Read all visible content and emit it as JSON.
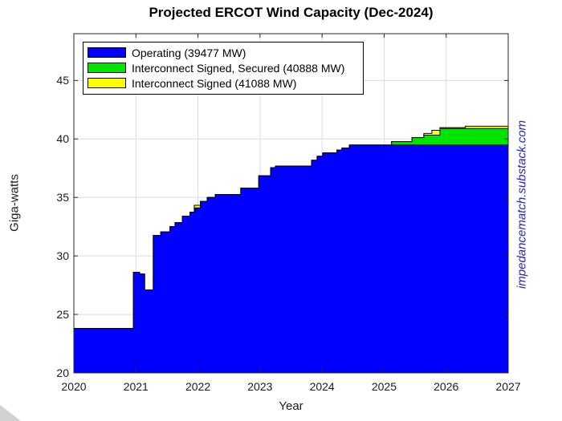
{
  "watermark": "impedancematch.substack.com",
  "chart_data": {
    "type": "area",
    "title": "Projected ERCOT Wind Capacity (Dec-2024)",
    "xlabel": "Year",
    "ylabel": "Giga-watts",
    "xlim": [
      2020,
      2027
    ],
    "ylim": [
      20,
      49
    ],
    "xticks": [
      2020,
      2021,
      2022,
      2023,
      2024,
      2025,
      2026,
      2027
    ],
    "yticks": [
      20,
      25,
      30,
      35,
      40,
      45
    ],
    "grid": true,
    "legend_position": "top-left",
    "units": "Giga-watts (cumulative step levels, x = decimal year)",
    "axis_color": "#262626",
    "grid_color": "#dcdcdc",
    "series": [
      {
        "name": "Operating (39477 MW)",
        "total_mw": 39477,
        "color": "#0000ff",
        "steps": [
          [
            2020.0,
            23.8
          ],
          [
            2020.96,
            28.6
          ],
          [
            2021.06,
            28.45
          ],
          [
            2021.14,
            27.1
          ],
          [
            2021.28,
            31.75
          ],
          [
            2021.4,
            32.05
          ],
          [
            2021.55,
            32.5
          ],
          [
            2021.63,
            32.85
          ],
          [
            2021.75,
            33.4
          ],
          [
            2021.87,
            33.75
          ],
          [
            2021.95,
            34.1
          ],
          [
            2022.04,
            34.65
          ],
          [
            2022.15,
            35.0
          ],
          [
            2022.28,
            35.25
          ],
          [
            2022.69,
            35.8
          ],
          [
            2022.98,
            36.85
          ],
          [
            2023.17,
            37.55
          ],
          [
            2023.25,
            37.68
          ],
          [
            2023.83,
            38.18
          ],
          [
            2023.92,
            38.52
          ],
          [
            2024.01,
            38.8
          ],
          [
            2024.24,
            39.06
          ],
          [
            2024.32,
            39.22
          ],
          [
            2024.44,
            39.48
          ]
        ]
      },
      {
        "name": "Interconnect Signed, Secured (40888 MW)",
        "total_mw": 40888,
        "color": "#00e400",
        "steps": [
          [
            2020.0,
            23.8
          ],
          [
            2020.96,
            28.6
          ],
          [
            2021.06,
            28.45
          ],
          [
            2021.14,
            27.1
          ],
          [
            2021.28,
            31.75
          ],
          [
            2021.4,
            32.05
          ],
          [
            2021.55,
            32.5
          ],
          [
            2021.63,
            32.85
          ],
          [
            2021.75,
            33.4
          ],
          [
            2021.87,
            33.75
          ],
          [
            2021.95,
            34.1
          ],
          [
            2022.04,
            34.65
          ],
          [
            2022.15,
            35.0
          ],
          [
            2022.28,
            35.25
          ],
          [
            2022.69,
            35.8
          ],
          [
            2022.98,
            36.85
          ],
          [
            2023.17,
            37.55
          ],
          [
            2023.25,
            37.68
          ],
          [
            2023.83,
            38.18
          ],
          [
            2023.92,
            38.52
          ],
          [
            2024.01,
            38.8
          ],
          [
            2024.24,
            39.06
          ],
          [
            2024.32,
            39.22
          ],
          [
            2024.44,
            39.48
          ],
          [
            2025.12,
            39.77
          ],
          [
            2025.45,
            40.11
          ],
          [
            2025.64,
            40.33
          ],
          [
            2025.9,
            40.89
          ]
        ]
      },
      {
        "name": "Interconnect Signed (41088 MW)",
        "total_mw": 41088,
        "color": "#ffff00",
        "steps": [
          [
            2020.0,
            23.8
          ],
          [
            2020.96,
            28.6
          ],
          [
            2021.06,
            28.45
          ],
          [
            2021.14,
            27.1
          ],
          [
            2021.28,
            31.75
          ],
          [
            2021.4,
            32.05
          ],
          [
            2021.55,
            32.5
          ],
          [
            2021.63,
            32.85
          ],
          [
            2021.75,
            33.4
          ],
          [
            2021.87,
            33.75
          ],
          [
            2021.94,
            34.33
          ],
          [
            2022.04,
            34.65
          ],
          [
            2022.15,
            35.0
          ],
          [
            2022.28,
            35.25
          ],
          [
            2022.69,
            35.8
          ],
          [
            2022.98,
            36.85
          ],
          [
            2023.17,
            37.55
          ],
          [
            2023.25,
            37.68
          ],
          [
            2023.83,
            38.18
          ],
          [
            2023.92,
            38.52
          ],
          [
            2024.01,
            38.8
          ],
          [
            2024.24,
            39.06
          ],
          [
            2024.32,
            39.22
          ],
          [
            2024.44,
            39.48
          ],
          [
            2025.12,
            39.77
          ],
          [
            2025.45,
            40.11
          ],
          [
            2025.64,
            40.47
          ],
          [
            2025.77,
            40.74
          ],
          [
            2025.9,
            40.97
          ],
          [
            2026.31,
            41.09
          ]
        ]
      }
    ]
  }
}
